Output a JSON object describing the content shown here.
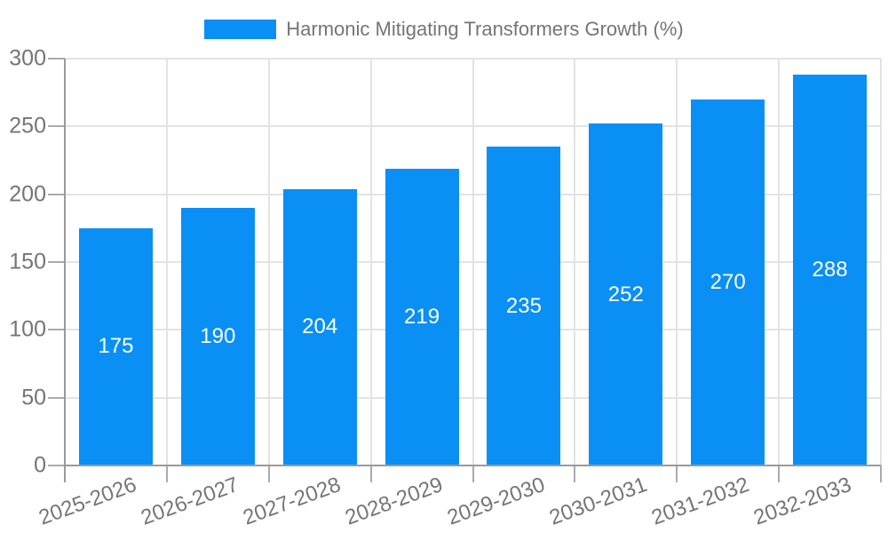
{
  "chart_data": {
    "type": "bar",
    "title": "Harmonic Mitigating Transformers Growth (%)",
    "categories": [
      "2025-2026",
      "2026-2027",
      "2027-2028",
      "2028-2029",
      "2029-2030",
      "2030-2031",
      "2031-2032",
      "2032-2033"
    ],
    "values": [
      175,
      190,
      204,
      219,
      235,
      252,
      270,
      288
    ],
    "xlabel": "",
    "ylabel": "",
    "ylim": [
      0,
      300
    ],
    "yticks": [
      0,
      50,
      100,
      150,
      200,
      250,
      300
    ],
    "grid": true,
    "legend_position": "top",
    "value_labels": "inside-center",
    "colors": {
      "bar": "#0A8FF5",
      "bar_label": "#FFFFFF",
      "tick_text": "#757575",
      "grid_line": "#E3E3E3",
      "axis_line": "#9A9A9A",
      "tick_line": "#ABABAB",
      "background": "#FFFFFF"
    }
  }
}
